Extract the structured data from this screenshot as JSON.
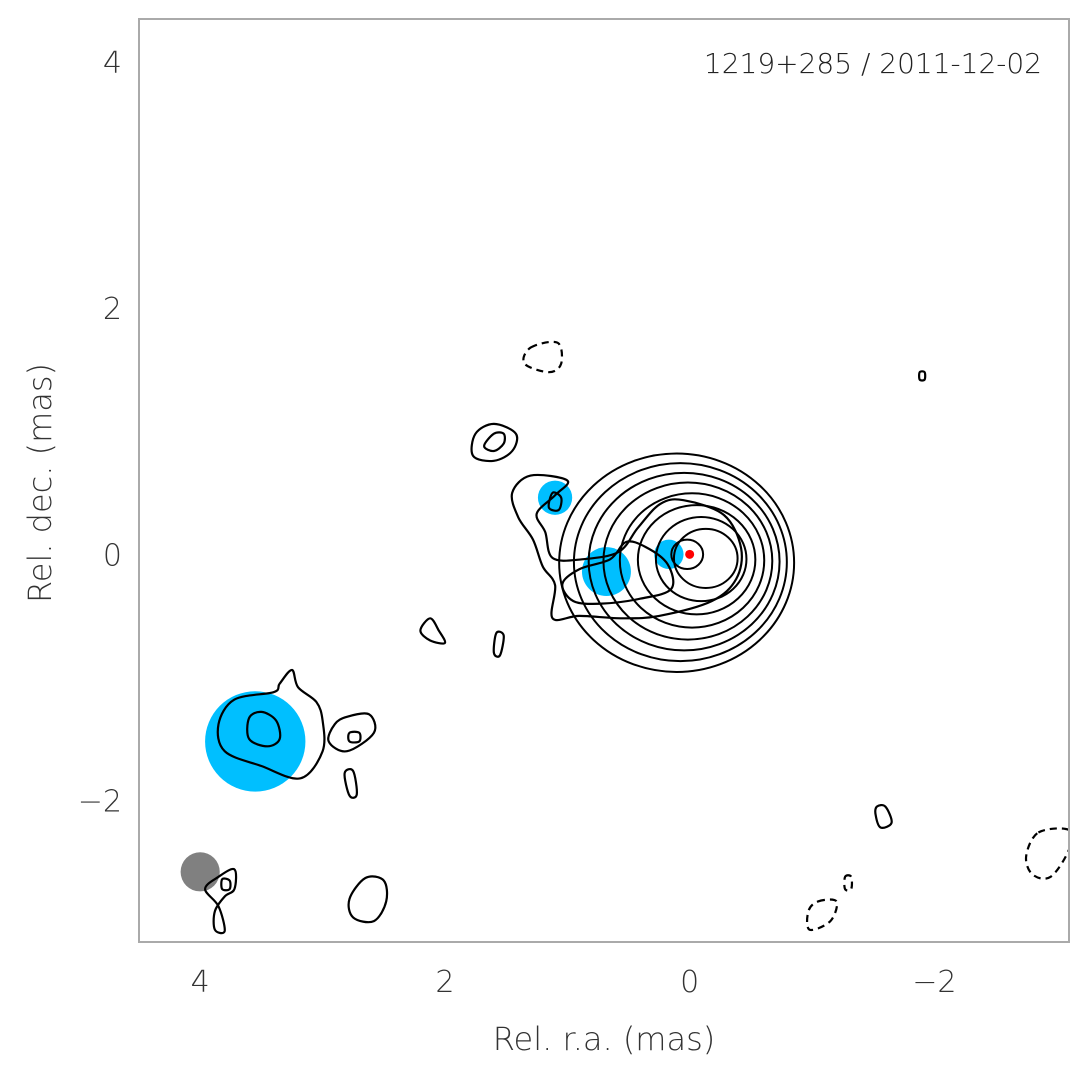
{
  "chart_data": {
    "type": "contour",
    "annotation": "1219+285 / 2011-12-02",
    "xlabel": "Rel. r.a. (mas)",
    "ylabel": "Rel. dec. (mas)",
    "xlim": [
      4.5,
      -3.1
    ],
    "ylim": [
      -3.15,
      4.35
    ],
    "xticks": [
      4,
      2,
      0,
      -2
    ],
    "yticks": [
      4,
      2,
      0,
      -2
    ],
    "xtick_labels": [
      "4",
      "2",
      "0",
      "−2"
    ],
    "ytick_labels": [
      "4",
      "2",
      "0",
      "−2"
    ],
    "grid": false,
    "colors": {
      "component": "#00bfff",
      "core": "#ff0000",
      "beam": "#808080",
      "contour": "#000000",
      "frame": "#aaaaaa"
    },
    "components": [
      {
        "x": 0.0,
        "y": 0.0,
        "d": 0.07,
        "role": "core"
      },
      {
        "x": 0.17,
        "y": 0.0,
        "d": 0.24
      },
      {
        "x": 0.68,
        "y": -0.14,
        "d": 0.4
      },
      {
        "x": 1.1,
        "y": 0.46,
        "d": 0.28
      },
      {
        "x": 3.55,
        "y": -1.52,
        "d": 0.82
      }
    ],
    "beam": {
      "x": 4.0,
      "y": -2.58,
      "d": 0.32
    },
    "core_contours": [
      0.26,
      0.37,
      0.48,
      0.59,
      0.69,
      0.78,
      0.87,
      0.96
    ],
    "contours": [
      {
        "level": "positive",
        "points": [
          [
            0.42,
            0.22
          ],
          [
            0.58,
            0.02
          ],
          [
            0.88,
            -0.04
          ],
          [
            1.12,
            -0.03
          ],
          [
            1.18,
            0.18
          ],
          [
            1.25,
            0.33
          ],
          [
            1.1,
            0.48
          ],
          [
            1.0,
            0.6
          ],
          [
            1.3,
            0.64
          ],
          [
            1.45,
            0.5
          ],
          [
            1.4,
            0.3
          ],
          [
            1.28,
            0.12
          ],
          [
            1.2,
            -0.1
          ],
          [
            1.1,
            -0.25
          ],
          [
            1.12,
            -0.52
          ],
          [
            0.9,
            -0.5
          ],
          [
            0.55,
            -0.52
          ],
          [
            0.25,
            -0.5
          ],
          [
            -0.18,
            -0.38
          ],
          [
            -0.38,
            -0.2
          ],
          [
            -0.42,
            0.05
          ],
          [
            -0.28,
            0.32
          ],
          [
            0.05,
            0.44
          ],
          [
            0.24,
            0.41
          ]
        ]
      },
      {
        "level": "positive",
        "points": [
          [
            0.52,
            0.1
          ],
          [
            0.65,
            -0.04
          ],
          [
            0.9,
            -0.12
          ],
          [
            1.04,
            -0.24
          ],
          [
            0.95,
            -0.38
          ],
          [
            0.72,
            -0.4
          ],
          [
            0.4,
            -0.36
          ],
          [
            0.15,
            -0.28
          ],
          [
            0.18,
            -0.08
          ],
          [
            0.36,
            0.06
          ]
        ]
      },
      {
        "level": "positive",
        "points": [
          [
            1.12,
            0.5
          ],
          [
            1.05,
            0.46
          ],
          [
            1.07,
            0.36
          ],
          [
            1.15,
            0.38
          ]
        ]
      },
      {
        "level": "positive",
        "points": [
          [
            1.6,
            1.06
          ],
          [
            1.75,
            0.98
          ],
          [
            1.77,
            0.8
          ],
          [
            1.6,
            0.76
          ],
          [
            1.45,
            0.84
          ],
          [
            1.42,
            0.98
          ]
        ]
      },
      {
        "level": "positive",
        "points": [
          [
            1.6,
            0.98
          ],
          [
            1.68,
            0.88
          ],
          [
            1.6,
            0.84
          ],
          [
            1.52,
            0.9
          ],
          [
            1.52,
            0.98
          ]
        ]
      },
      {
        "level": "positive",
        "points": [
          [
            2.12,
            -0.52
          ],
          [
            2.05,
            -0.62
          ],
          [
            2.0,
            -0.72
          ],
          [
            2.12,
            -0.7
          ],
          [
            2.2,
            -0.62
          ]
        ]
      },
      {
        "level": "positive",
        "points": [
          [
            1.58,
            -0.64
          ],
          [
            1.52,
            -0.66
          ],
          [
            1.55,
            -0.82
          ],
          [
            1.6,
            -0.8
          ]
        ]
      },
      {
        "level": "positive",
        "points": [
          [
            3.72,
            -1.18
          ],
          [
            3.4,
            -1.12
          ],
          [
            3.35,
            -1.05
          ],
          [
            3.25,
            -0.94
          ],
          [
            3.2,
            -1.08
          ],
          [
            3.05,
            -1.2
          ],
          [
            3.0,
            -1.35
          ],
          [
            3.0,
            -1.6
          ],
          [
            3.18,
            -1.82
          ],
          [
            3.5,
            -1.72
          ],
          [
            3.8,
            -1.6
          ],
          [
            3.85,
            -1.38
          ]
        ]
      },
      {
        "level": "positive",
        "points": [
          [
            3.6,
            -1.33
          ],
          [
            3.5,
            -1.28
          ],
          [
            3.38,
            -1.35
          ],
          [
            3.35,
            -1.5
          ],
          [
            3.45,
            -1.56
          ],
          [
            3.6,
            -1.5
          ]
        ]
      },
      {
        "level": "positive",
        "points": [
          [
            2.8,
            -1.32
          ],
          [
            2.62,
            -1.3
          ],
          [
            2.58,
            -1.45
          ],
          [
            2.8,
            -1.6
          ],
          [
            2.95,
            -1.52
          ],
          [
            2.9,
            -1.38
          ]
        ]
      },
      {
        "level": "positive",
        "points": [
          [
            2.78,
            -1.45
          ],
          [
            2.7,
            -1.45
          ],
          [
            2.7,
            -1.52
          ],
          [
            2.78,
            -1.52
          ]
        ]
      },
      {
        "level": "positive",
        "points": [
          [
            2.82,
            -1.78
          ],
          [
            2.75,
            -1.76
          ],
          [
            2.72,
            -1.95
          ],
          [
            2.78,
            -1.96
          ]
        ]
      },
      {
        "level": "positive",
        "points": [
          [
            3.85,
            -2.62
          ],
          [
            3.72,
            -2.56
          ],
          [
            3.72,
            -2.72
          ],
          [
            3.8,
            -2.78
          ],
          [
            3.88,
            -2.9
          ],
          [
            3.88,
            -3.05
          ],
          [
            3.8,
            -3.06
          ],
          [
            3.85,
            -2.86
          ],
          [
            3.96,
            -2.72
          ]
        ]
      },
      {
        "level": "positive",
        "points": [
          [
            3.82,
            -2.64
          ],
          [
            3.76,
            -2.65
          ],
          [
            3.76,
            -2.72
          ],
          [
            3.82,
            -2.72
          ]
        ]
      },
      {
        "level": "positive",
        "points": [
          [
            2.65,
            -2.63
          ],
          [
            2.5,
            -2.65
          ],
          [
            2.48,
            -2.82
          ],
          [
            2.58,
            -2.98
          ],
          [
            2.75,
            -2.95
          ],
          [
            2.78,
            -2.8
          ]
        ]
      },
      {
        "level": "positive",
        "points": [
          [
            -1.53,
            -2.05
          ],
          [
            -1.6,
            -2.05
          ],
          [
            -1.65,
            -2.18
          ],
          [
            -1.56,
            -2.22
          ],
          [
            -1.52,
            -2.12
          ]
        ]
      },
      {
        "level": "positive",
        "points": [
          [
            -1.88,
            1.48
          ],
          [
            -1.92,
            1.48
          ],
          [
            -1.92,
            1.42
          ],
          [
            -1.88,
            1.42
          ]
        ]
      },
      {
        "level": "negative",
        "points": [
          [
            1.3,
            1.68
          ],
          [
            1.08,
            1.72
          ],
          [
            1.05,
            1.55
          ],
          [
            1.15,
            1.48
          ],
          [
            1.35,
            1.55
          ]
        ]
      },
      {
        "level": "negative",
        "points": [
          [
            -1.05,
            -2.82
          ],
          [
            -1.2,
            -2.82
          ],
          [
            -1.15,
            -2.98
          ],
          [
            -0.98,
            -3.05
          ],
          [
            -0.97,
            -2.9
          ]
        ]
      },
      {
        "level": "negative",
        "points": [
          [
            -1.27,
            -2.62
          ],
          [
            -1.32,
            -2.62
          ],
          [
            -1.32,
            -2.72
          ],
          [
            -1.27,
            -2.72
          ]
        ]
      },
      {
        "level": "negative",
        "points": [
          [
            -2.85,
            -2.26
          ],
          [
            -3.1,
            -2.24
          ],
          [
            -3.1,
            -2.4
          ],
          [
            -2.95,
            -2.62
          ],
          [
            -2.8,
            -2.6
          ],
          [
            -2.75,
            -2.45
          ]
        ]
      }
    ]
  }
}
